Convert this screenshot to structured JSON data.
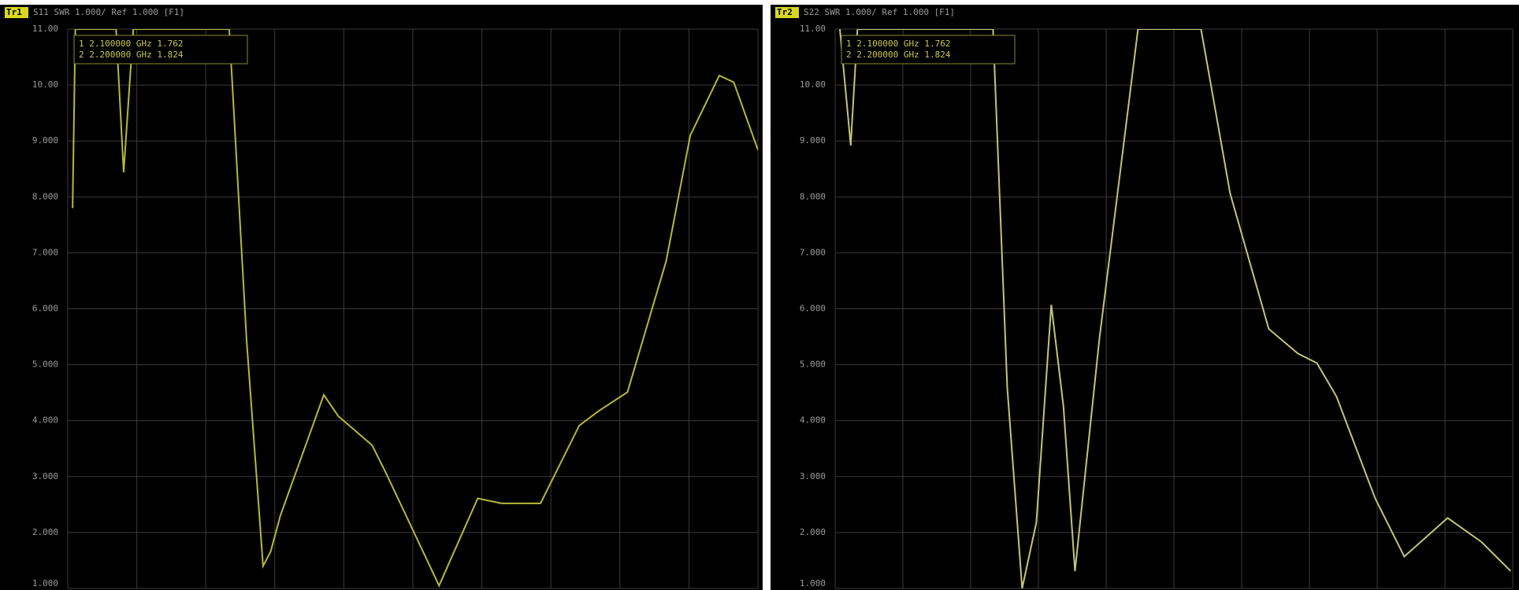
{
  "chart_data": [
    {
      "type": "line",
      "trace_label": "Tr1",
      "title": "S11 SWR 1.000/ Ref 1.000 [F1]",
      "annotations": [
        "1  2.100000 GHz  1.762",
        "2  2.200000 GHz  1.824"
      ],
      "x": [
        0.07,
        0.11,
        0.7,
        0.81,
        0.95,
        2.34,
        2.59,
        2.83,
        2.94,
        3.08,
        3.71,
        3.92,
        4.41,
        4.62,
        5.38,
        5.94,
        6.29,
        6.85,
        7.41,
        7.69,
        8.11,
        8.67,
        9.02,
        9.44,
        9.65,
        10
      ],
      "series": [
        {
          "name": "Tr1",
          "color": "#b8b83a",
          "values": [
            7.8,
            11,
            11,
            8.44,
            11,
            11,
            5.46,
            1.4,
            1.66,
            2.3,
            4.46,
            4.08,
            3.56,
            3.04,
            1.05,
            2.61,
            2.52,
            2.52,
            3.91,
            4.17,
            4.51,
            6.85,
            9.1,
            10.17,
            10.05,
            8.84
          ]
        }
      ],
      "xlim": [
        0,
        10
      ],
      "xticks": [
        0,
        1,
        2,
        3,
        4,
        5,
        6,
        7,
        8,
        9,
        10
      ],
      "ylim": [
        1,
        11
      ],
      "yticks": [
        {
          "value": 11,
          "label": "11.00"
        },
        {
          "value": 10,
          "label": "10.00"
        },
        {
          "value": 9,
          "label": "9.000"
        },
        {
          "value": 8,
          "label": "8.000"
        },
        {
          "value": 7,
          "label": "7.000"
        },
        {
          "value": 6,
          "label": "6.000"
        },
        {
          "value": 5,
          "label": "5.000"
        },
        {
          "value": 4,
          "label": "4.000"
        },
        {
          "value": 3,
          "label": "3.000"
        },
        {
          "value": 2,
          "label": "2.000"
        },
        {
          "value": 1,
          "label": "1.000"
        }
      ],
      "grid": true
    },
    {
      "type": "line",
      "trace_label": "Tr2",
      "title": "S22 SWR 1.000/ Ref 1.000 [F1]",
      "annotations": [
        "1  2.100000 GHz  1.762",
        "2  2.200000 GHz  1.824"
      ],
      "x": [
        0.07,
        0.23,
        0.33,
        2.33,
        2.54,
        2.76,
        2.97,
        3.19,
        3.37,
        3.54,
        3.9,
        4.47,
        5.4,
        5.83,
        6.4,
        6.83,
        7.11,
        7.4,
        7.97,
        8.4,
        9.04,
        9.54,
        9.97
      ],
      "series": [
        {
          "name": "Tr2",
          "color": "#c4c47a",
          "values": [
            11,
            8.92,
            11,
            11,
            4.6,
            1.0,
            2.18,
            6.07,
            4.25,
            1.31,
            5.46,
            11,
            11,
            8.06,
            5.64,
            5.2,
            5.03,
            4.43,
            2.61,
            1.57,
            2.26,
            1.83,
            1.31
          ]
        }
      ],
      "xlim": [
        0,
        10
      ],
      "xticks": [
        0,
        1,
        2,
        3,
        4,
        5,
        6,
        7,
        8,
        9,
        10
      ],
      "ylim": [
        1,
        11
      ],
      "yticks": [
        {
          "value": 11,
          "label": "11.00"
        },
        {
          "value": 10,
          "label": "10.00"
        },
        {
          "value": 9,
          "label": "9.000"
        },
        {
          "value": 8,
          "label": "8.000"
        },
        {
          "value": 7,
          "label": "7.000"
        },
        {
          "value": 6,
          "label": "6.000"
        },
        {
          "value": 5,
          "label": "5.000"
        },
        {
          "value": 4,
          "label": "4.000"
        },
        {
          "value": 3,
          "label": "3.000"
        },
        {
          "value": 2,
          "label": "2.000"
        },
        {
          "value": 1,
          "label": "1.000"
        }
      ],
      "grid": true
    }
  ]
}
